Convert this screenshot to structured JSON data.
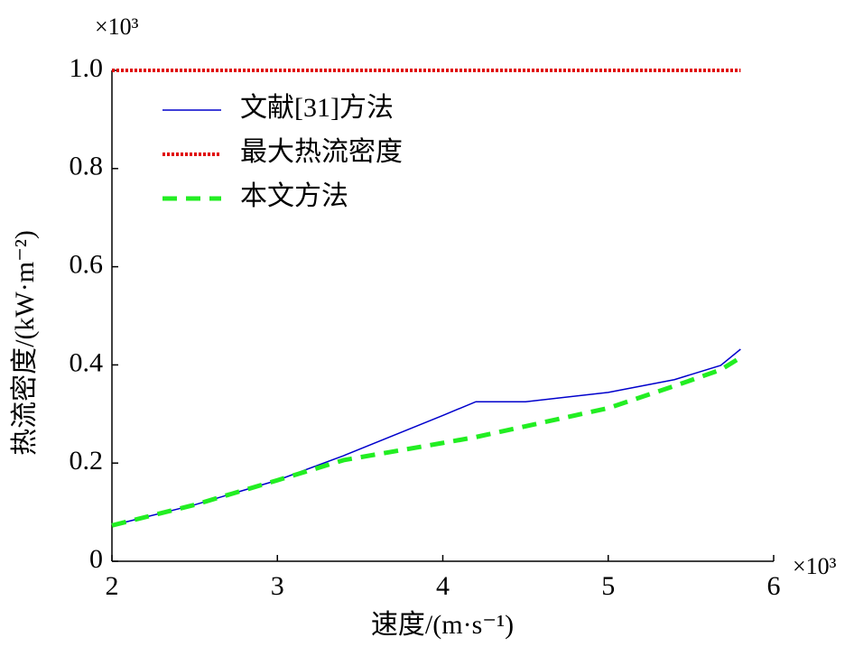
{
  "chart_data": {
    "type": "line",
    "x_label": "速度/(m·s⁻¹)",
    "y_label": "热流密度/(kW·m⁻²)",
    "x_multiplier": "×10³",
    "y_multiplier": "×10³",
    "x": [
      2,
      2.5,
      3,
      3.4,
      4,
      4.2,
      4.5,
      5,
      5.4,
      5.68,
      5.8
    ],
    "series": [
      {
        "name": "文献[31]方法",
        "color": "#0000cc",
        "style": "solid",
        "values": [
          0.073,
          0.115,
          0.165,
          0.215,
          0.297,
          0.325,
          0.325,
          0.344,
          0.37,
          0.399,
          0.432
        ]
      },
      {
        "name": "最大热流密度",
        "color": "#e00000",
        "style": "dotted",
        "values": [
          1,
          1,
          1,
          1,
          1,
          1,
          1,
          1,
          1,
          1,
          1
        ]
      },
      {
        "name": "本文方法",
        "color": "#22ee22",
        "style": "dashed",
        "values": [
          0.073,
          0.115,
          0.165,
          0.206,
          0.241,
          0.253,
          0.275,
          0.312,
          0.357,
          0.39,
          0.415
        ]
      }
    ],
    "xlim": [
      2,
      6
    ],
    "xticks": [
      2,
      3,
      4,
      5,
      6
    ],
    "ylim": [
      0,
      1
    ],
    "yticks": [
      0,
      0.2,
      0.4,
      0.6,
      0.8,
      {
        "value": 1,
        "label": "1.0"
      }
    ],
    "legend": "upper-left"
  }
}
